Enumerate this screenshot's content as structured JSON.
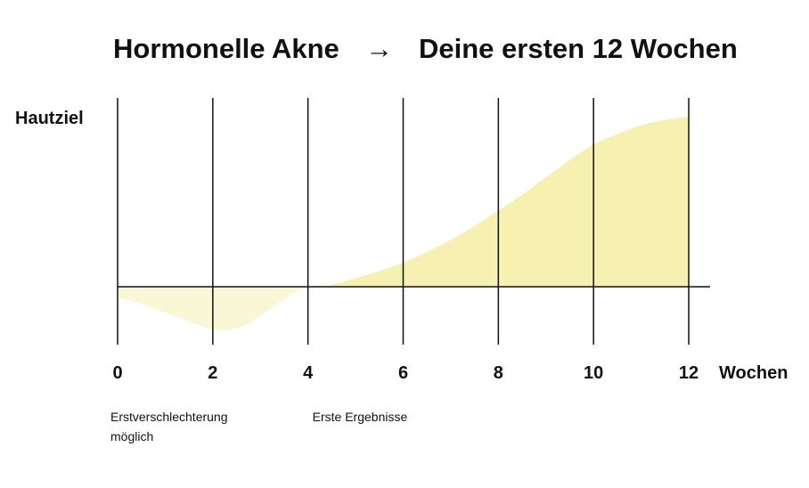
{
  "colors": {
    "fill_above": "#F6F1B0",
    "fill_below": "#FAF7D6",
    "line": "#111111",
    "text": "#111111"
  },
  "chart_data": {
    "type": "area",
    "title_left": "Hormonelle Akne",
    "title_arrow": "→",
    "title_right": "Deine ersten 12 Wochen",
    "ylabel": "Hautziel",
    "xlabel": "Wochen",
    "x_ticks": [
      0,
      2,
      4,
      6,
      8,
      10,
      12
    ],
    "x_tick_labels": [
      "0",
      "2",
      "4",
      "6",
      "8",
      "10",
      "12"
    ],
    "xlim": [
      0,
      12
    ],
    "ylim": [
      -0.25,
      1.0
    ],
    "grid": {
      "vertical_lines": true,
      "baseline": true
    },
    "series": [
      {
        "x": [
          0,
          0.5,
          1,
          1.5,
          2,
          2.5,
          3,
          3.5,
          4,
          4.5,
          5,
          5.5,
          6,
          6.5,
          7,
          7.5,
          8,
          8.5,
          9,
          9.5,
          10,
          10.5,
          11,
          11.5,
          12
        ],
        "y": [
          -0.06,
          -0.1,
          -0.15,
          -0.2,
          -0.245,
          -0.24,
          -0.17,
          -0.07,
          0.0,
          0.01,
          0.05,
          0.09,
          0.14,
          0.2,
          0.27,
          0.35,
          0.44,
          0.53,
          0.63,
          0.73,
          0.82,
          0.88,
          0.93,
          0.96,
          0.98
        ]
      }
    ],
    "annotations": [
      {
        "x": 0,
        "lines": [
          "Erstverschlechterung",
          "möglich"
        ]
      },
      {
        "x": 4,
        "lines": [
          "Erste Ergebnisse"
        ]
      }
    ]
  }
}
